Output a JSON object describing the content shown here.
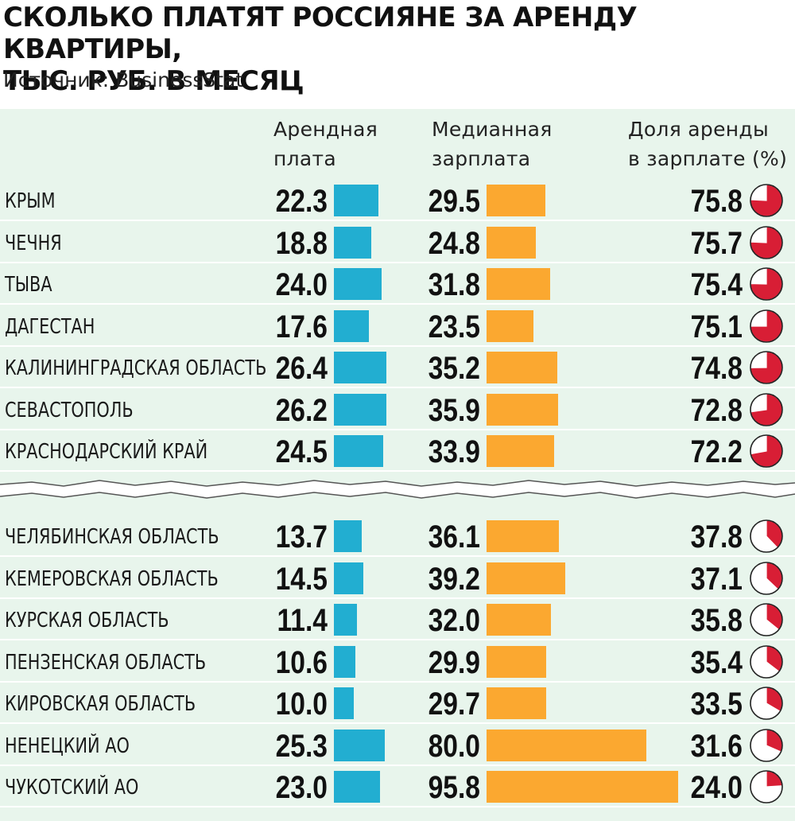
{
  "title_lines": [
    "СКОЛЬКО ПЛАТЯТ РОССИЯНЕ ЗА АРЕНДУ КВАРТИРЫ,",
    "ТЫС. РУБ. В МЕСЯЦ"
  ],
  "source": "Источник: BusinessStat",
  "columns": {
    "rent": [
      "Арендная",
      "плата"
    ],
    "salary": [
      "Медианная",
      "зарплата"
    ],
    "share": [
      "Доля аренды",
      "в зарплате (%)"
    ]
  },
  "colors": {
    "panel": "#e8f5ec",
    "rent_bar": "#22aed1",
    "salary_bar": "#fba830",
    "pie_fill": "#d81e35",
    "pie_outline": "#222222"
  },
  "chart_data": {
    "type": "table",
    "bar_scale_max": 95.8,
    "top_group": [
      {
        "region": "КРЫМ",
        "rent": 22.3,
        "salary": 29.5,
        "share": 75.8,
        "rent_label": "22.3",
        "salary_label": "29.5",
        "share_label": "75.8"
      },
      {
        "region": "ЧЕЧНЯ",
        "rent": 18.8,
        "salary": 24.8,
        "share": 75.7,
        "rent_label": "18.8",
        "salary_label": "24.8",
        "share_label": "75.7"
      },
      {
        "region": "ТЫВА",
        "rent": 24.0,
        "salary": 31.8,
        "share": 75.4,
        "rent_label": "24.0",
        "salary_label": "31.8",
        "share_label": "75.4"
      },
      {
        "region": "ДАГЕСТАН",
        "rent": 17.6,
        "salary": 23.5,
        "share": 75.1,
        "rent_label": "17.6",
        "salary_label": "23.5",
        "share_label": "75.1"
      },
      {
        "region": "КАЛИНИНГРАДСКАЯ ОБЛАСТЬ",
        "rent": 26.4,
        "salary": 35.2,
        "share": 74.8,
        "rent_label": "26.4",
        "salary_label": "35.2",
        "share_label": "74.8"
      },
      {
        "region": "СЕВАСТОПОЛЬ",
        "rent": 26.2,
        "salary": 35.9,
        "share": 72.8,
        "rent_label": "26.2",
        "salary_label": "35.9",
        "share_label": "72.8"
      },
      {
        "region": "КРАСНОДАРСКИЙ КРАЙ",
        "rent": 24.5,
        "salary": 33.9,
        "share": 72.2,
        "rent_label": "24.5",
        "salary_label": "33.9",
        "share_label": "72.2"
      }
    ],
    "bottom_group": [
      {
        "region": "ЧЕЛЯБИНСКАЯ ОБЛАСТЬ",
        "rent": 13.7,
        "salary": 36.1,
        "share": 37.8,
        "rent_label": "13.7",
        "salary_label": "36.1",
        "share_label": "37.8"
      },
      {
        "region": "КЕМЕРОВСКАЯ ОБЛАСТЬ",
        "rent": 14.5,
        "salary": 39.2,
        "share": 37.1,
        "rent_label": "14.5",
        "salary_label": "39.2",
        "share_label": "37.1"
      },
      {
        "region": "КУРСКАЯ ОБЛАСТЬ",
        "rent": 11.4,
        "salary": 32.0,
        "share": 35.8,
        "rent_label": "11.4",
        "salary_label": "32.0",
        "share_label": "35.8"
      },
      {
        "region": "ПЕНЗЕНСКАЯ ОБЛАСТЬ",
        "rent": 10.6,
        "salary": 29.9,
        "share": 35.4,
        "rent_label": "10.6",
        "salary_label": "29.9",
        "share_label": "35.4"
      },
      {
        "region": "КИРОВСКАЯ ОБЛАСТЬ",
        "rent": 10.0,
        "salary": 29.7,
        "share": 33.5,
        "rent_label": "10.0",
        "salary_label": "29.7",
        "share_label": "33.5"
      },
      {
        "region": "НЕНЕЦКИЙ АО",
        "rent": 25.3,
        "salary": 80.0,
        "share": 31.6,
        "rent_label": "25.3",
        "salary_label": "80.0",
        "share_label": "31.6"
      },
      {
        "region": "ЧУКОТСКИЙ АО",
        "rent": 23.0,
        "salary": 95.8,
        "share": 24.0,
        "rent_label": "23.0",
        "salary_label": "95.8",
        "share_label": "24.0"
      }
    ]
  }
}
